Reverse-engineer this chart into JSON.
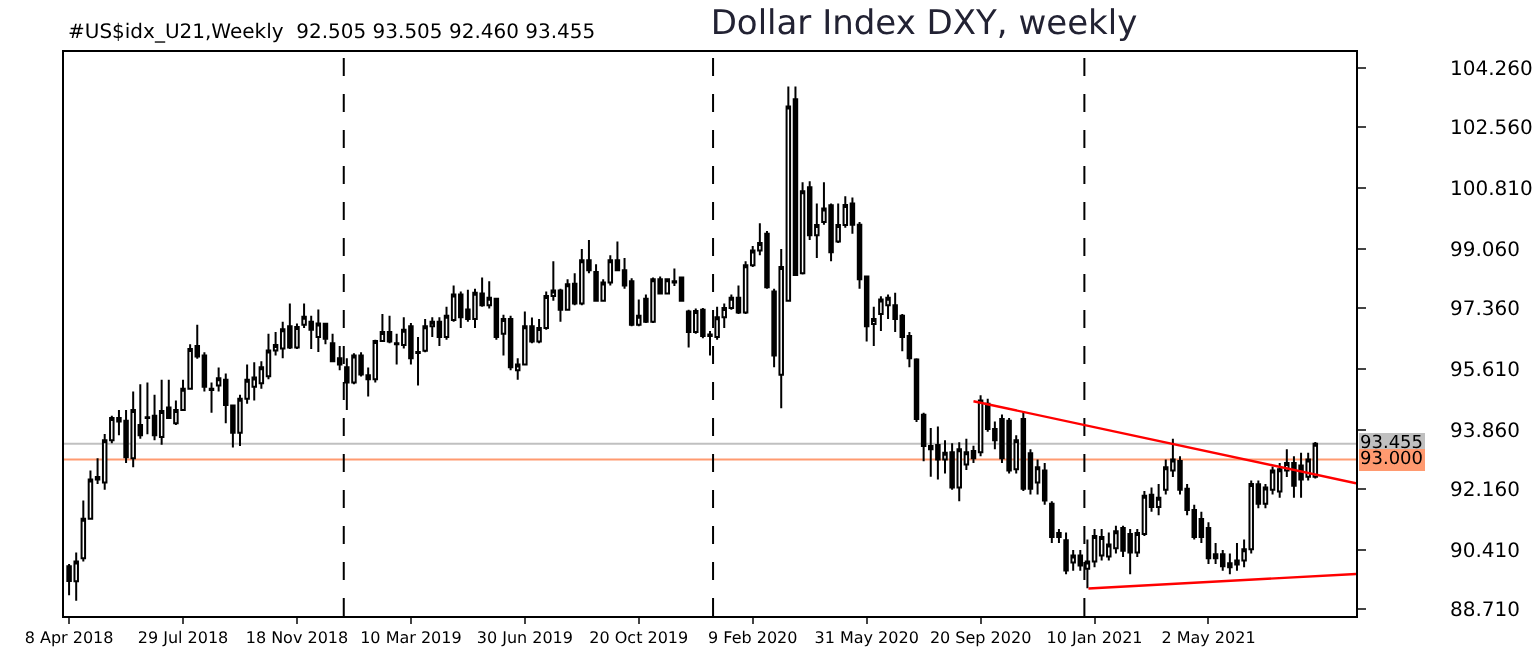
{
  "chart_data": {
    "type": "candlestick",
    "title": "Dollar Index DXY, weekly",
    "annotations": [
      "#US$idx_U21,Weekly  92.505 93.505 92.460 93.455"
    ],
    "x": [
      "2018-04-08",
      "2018-04-15",
      "2018-04-22",
      "2018-04-29",
      "2018-05-06",
      "2018-05-13",
      "2018-05-20",
      "2018-05-27",
      "2018-06-03",
      "2018-06-10",
      "2018-06-17",
      "2018-06-24",
      "2018-07-01",
      "2018-07-08",
      "2018-07-15",
      "2018-07-22",
      "2018-07-29",
      "2018-08-05",
      "2018-08-12",
      "2018-08-19",
      "2018-08-26",
      "2018-09-02",
      "2018-09-09",
      "2018-09-16",
      "2018-09-23",
      "2018-09-30",
      "2018-10-07",
      "2018-10-14",
      "2018-10-21",
      "2018-10-28",
      "2018-11-04",
      "2018-11-11",
      "2018-11-18",
      "2018-11-25",
      "2018-12-02",
      "2018-12-09",
      "2018-12-16",
      "2018-12-23",
      "2018-12-30",
      "2019-01-06",
      "2019-01-13",
      "2019-01-20",
      "2019-01-27",
      "2019-02-03",
      "2019-02-10",
      "2019-02-17",
      "2019-02-24",
      "2019-03-03",
      "2019-03-10",
      "2019-03-17",
      "2019-03-24",
      "2019-03-31",
      "2019-04-07",
      "2019-04-14",
      "2019-04-21",
      "2019-04-28",
      "2019-05-05",
      "2019-05-12",
      "2019-05-19",
      "2019-05-26",
      "2019-06-02",
      "2019-06-09",
      "2019-06-16",
      "2019-06-23",
      "2019-06-30",
      "2019-07-07",
      "2019-07-14",
      "2019-07-21",
      "2019-07-28",
      "2019-08-04",
      "2019-08-11",
      "2019-08-18",
      "2019-08-25",
      "2019-09-01",
      "2019-09-08",
      "2019-09-15",
      "2019-09-22",
      "2019-09-29",
      "2019-10-06",
      "2019-10-13",
      "2019-10-20",
      "2019-10-27",
      "2019-11-03",
      "2019-11-10",
      "2019-11-17",
      "2019-11-24",
      "2019-12-01",
      "2019-12-08",
      "2019-12-15",
      "2019-12-22",
      "2019-12-29",
      "2020-01-05",
      "2020-01-12",
      "2020-01-19",
      "2020-01-26",
      "2020-02-02",
      "2020-02-09",
      "2020-02-16",
      "2020-02-23",
      "2020-03-01",
      "2020-03-08",
      "2020-03-15",
      "2020-03-22",
      "2020-03-29",
      "2020-04-05",
      "2020-04-12",
      "2020-04-19",
      "2020-04-26",
      "2020-05-03",
      "2020-05-10",
      "2020-05-17",
      "2020-05-24",
      "2020-05-31",
      "2020-06-07",
      "2020-06-14",
      "2020-06-21",
      "2020-06-28",
      "2020-07-05",
      "2020-07-12",
      "2020-07-19",
      "2020-07-26",
      "2020-08-02",
      "2020-08-09",
      "2020-08-16",
      "2020-08-23",
      "2020-08-30",
      "2020-09-06",
      "2020-09-13",
      "2020-09-20",
      "2020-09-27",
      "2020-10-04",
      "2020-10-11",
      "2020-10-18",
      "2020-10-25",
      "2020-11-01",
      "2020-11-08",
      "2020-11-15",
      "2020-11-22",
      "2020-11-29",
      "2020-12-06",
      "2020-12-13",
      "2020-12-20",
      "2020-12-27",
      "2021-01-03",
      "2021-01-10",
      "2021-01-17",
      "2021-01-24",
      "2021-01-31",
      "2021-02-07",
      "2021-02-14",
      "2021-02-21",
      "2021-02-28",
      "2021-03-07",
      "2021-03-14",
      "2021-03-21",
      "2021-03-28",
      "2021-04-04",
      "2021-04-11",
      "2021-04-18",
      "2021-04-25",
      "2021-05-02",
      "2021-05-09",
      "2021-05-16",
      "2021-05-23",
      "2021-05-30",
      "2021-06-06",
      "2021-06-13",
      "2021-06-20",
      "2021-06-27",
      "2021-07-04",
      "2021-07-11",
      "2021-07-18",
      "2021-07-25",
      "2021-08-01",
      "2021-08-08",
      "2021-08-15"
    ],
    "ohlc": [
      [
        89.93,
        90.0,
        89.1,
        89.51
      ],
      [
        89.5,
        90.33,
        88.94,
        90.07
      ],
      [
        90.16,
        91.82,
        90.07,
        91.3
      ],
      [
        91.3,
        92.69,
        91.29,
        92.43
      ],
      [
        92.43,
        93.04,
        92.3,
        92.5
      ],
      [
        92.34,
        93.74,
        92.13,
        93.56
      ],
      [
        93.56,
        94.26,
        93.47,
        94.2
      ],
      [
        94.1,
        94.43,
        93.7,
        94.2
      ],
      [
        94.12,
        94.43,
        92.9,
        93.07
      ],
      [
        93.04,
        94.96,
        92.78,
        94.43
      ],
      [
        94.0,
        95.17,
        93.6,
        93.7
      ],
      [
        94.2,
        95.22,
        93.73,
        94.22
      ],
      [
        94.26,
        94.87,
        93.56,
        93.7
      ],
      [
        93.65,
        95.3,
        93.43,
        94.4
      ],
      [
        94.5,
        95.3,
        94.17,
        94.2
      ],
      [
        94.05,
        94.7,
        94.0,
        94.43
      ],
      [
        94.43,
        95.3,
        94.43,
        95.04
      ],
      [
        95.04,
        96.32,
        95.04,
        96.18
      ],
      [
        96.27,
        96.88,
        95.9,
        95.97
      ],
      [
        96.0,
        96.09,
        94.96,
        95.1
      ],
      [
        95.0,
        95.22,
        94.35,
        95.04
      ],
      [
        95.13,
        95.65,
        94.96,
        95.34
      ],
      [
        95.3,
        95.48,
        94.05,
        94.57
      ],
      [
        94.56,
        94.57,
        93.35,
        93.77
      ],
      [
        93.77,
        94.87,
        93.39,
        94.75
      ],
      [
        94.75,
        95.74,
        94.61,
        95.3
      ],
      [
        95.1,
        95.8,
        94.7,
        95.36
      ],
      [
        95.2,
        95.83,
        95.04,
        95.66
      ],
      [
        95.4,
        96.62,
        95.31,
        96.14
      ],
      [
        96.14,
        96.67,
        96.0,
        96.3
      ],
      [
        96.2,
        96.97,
        95.92,
        96.75
      ],
      [
        96.84,
        97.49,
        96.18,
        96.23
      ],
      [
        96.23,
        96.92,
        96.18,
        96.82
      ],
      [
        96.88,
        97.49,
        96.79,
        97.11
      ],
      [
        96.97,
        97.14,
        96.18,
        96.74
      ],
      [
        96.53,
        97.32,
        96.1,
        96.92
      ],
      [
        96.91,
        96.93,
        96.32,
        96.48
      ],
      [
        96.35,
        96.62,
        95.8,
        95.83
      ],
      [
        95.92,
        96.27,
        95.57,
        95.74
      ],
      [
        95.66,
        95.92,
        94.43,
        95.22
      ],
      [
        95.22,
        96.06,
        95.17,
        96.0
      ],
      [
        96.0,
        96.09,
        95.39,
        95.45
      ],
      [
        95.43,
        95.65,
        94.82,
        95.31
      ],
      [
        95.31,
        96.45,
        95.22,
        96.41
      ],
      [
        96.41,
        97.19,
        96.4,
        96.67
      ],
      [
        96.67,
        97.14,
        96.35,
        96.4
      ],
      [
        96.35,
        96.62,
        95.74,
        96.32
      ],
      [
        96.3,
        97.1,
        96.2,
        96.74
      ],
      [
        96.84,
        96.93,
        95.74,
        95.92
      ],
      [
        96.07,
        96.53,
        95.13,
        96.1
      ],
      [
        96.13,
        97.05,
        96.09,
        96.84
      ],
      [
        96.84,
        97.1,
        96.53,
        96.97
      ],
      [
        96.97,
        97.1,
        96.27,
        96.53
      ],
      [
        96.53,
        97.4,
        96.45,
        97.14
      ],
      [
        97.02,
        98.01,
        96.97,
        97.75
      ],
      [
        97.75,
        97.84,
        96.79,
        97.1
      ],
      [
        97.32,
        97.89,
        96.97,
        97.05
      ],
      [
        97.05,
        97.92,
        96.79,
        97.8
      ],
      [
        97.78,
        98.24,
        97.4,
        97.44
      ],
      [
        97.44,
        98.13,
        97.35,
        97.66
      ],
      [
        97.63,
        97.66,
        96.45,
        96.53
      ],
      [
        96.62,
        97.17,
        96.0,
        97.05
      ],
      [
        97.05,
        97.14,
        95.57,
        95.66
      ],
      [
        95.57,
        95.92,
        95.3,
        95.74
      ],
      [
        95.74,
        97.26,
        95.74,
        96.84
      ],
      [
        96.84,
        97.09,
        96.35,
        96.4
      ],
      [
        96.4,
        97.05,
        96.35,
        96.79
      ],
      [
        96.79,
        97.84,
        96.74,
        97.71
      ],
      [
        97.71,
        98.71,
        97.57,
        97.87
      ],
      [
        97.87,
        97.92,
        96.97,
        97.31
      ],
      [
        97.31,
        98.19,
        97.31,
        98.05
      ],
      [
        98.06,
        98.36,
        97.44,
        97.49
      ],
      [
        97.49,
        99.06,
        97.44,
        98.74
      ],
      [
        98.74,
        99.32,
        98.36,
        98.45
      ],
      [
        98.4,
        98.62,
        97.54,
        97.57
      ],
      [
        97.57,
        98.19,
        97.54,
        98.1
      ],
      [
        98.1,
        98.88,
        98.01,
        98.74
      ],
      [
        98.74,
        99.28,
        98.45,
        98.45
      ],
      [
        98.45,
        98.8,
        97.92,
        98.01
      ],
      [
        98.13,
        98.22,
        96.84,
        96.88
      ],
      [
        96.88,
        97.61,
        96.84,
        97.14
      ],
      [
        97.63,
        97.75,
        96.93,
        96.97
      ],
      [
        96.97,
        98.24,
        96.93,
        98.19
      ],
      [
        98.19,
        98.27,
        97.75,
        97.78
      ],
      [
        97.78,
        98.22,
        97.75,
        98.19
      ],
      [
        98.1,
        98.5,
        98.0,
        98.13
      ],
      [
        98.24,
        98.27,
        97.54,
        97.57
      ],
      [
        97.26,
        97.31,
        96.23,
        96.67
      ],
      [
        96.67,
        97.35,
        96.62,
        97.28
      ],
      [
        97.31,
        97.36,
        96.49,
        96.56
      ],
      [
        96.56,
        96.7,
        96.0,
        96.6
      ],
      [
        96.53,
        97.4,
        96.45,
        97.1
      ],
      [
        97.1,
        97.49,
        96.79,
        97.36
      ],
      [
        97.36,
        97.75,
        97.31,
        97.66
      ],
      [
        97.66,
        98.01,
        97.19,
        97.23
      ],
      [
        97.23,
        98.71,
        97.19,
        98.59
      ],
      [
        98.59,
        99.15,
        98.54,
        99.02
      ],
      [
        99.02,
        99.8,
        98.88,
        99.23
      ],
      [
        99.5,
        99.58,
        97.92,
        97.96
      ],
      [
        97.84,
        97.92,
        95.66,
        96.0
      ],
      [
        95.44,
        99.06,
        94.48,
        98.54
      ],
      [
        97.57,
        103.74,
        97.57,
        103.16
      ],
      [
        103.37,
        103.74,
        98.31,
        98.31
      ],
      [
        98.36,
        100.98,
        98.33,
        100.72
      ],
      [
        100.84,
        101.01,
        99.32,
        99.46
      ],
      [
        99.46,
        100.37,
        98.8,
        99.75
      ],
      [
        99.84,
        100.98,
        99.76,
        100.23
      ],
      [
        100.32,
        100.37,
        98.71,
        98.97
      ],
      [
        99.28,
        100.37,
        99.23,
        99.75
      ],
      [
        99.75,
        100.58,
        99.67,
        100.33
      ],
      [
        100.37,
        100.54,
        99.5,
        99.76
      ],
      [
        99.76,
        99.84,
        97.92,
        98.19
      ],
      [
        98.27,
        98.27,
        96.4,
        96.84
      ],
      [
        96.9,
        97.4,
        96.27,
        97.05
      ],
      [
        97.19,
        97.7,
        96.7,
        97.61
      ],
      [
        97.44,
        97.75,
        97.05,
        97.66
      ],
      [
        97.44,
        97.8,
        96.67,
        97.05
      ],
      [
        97.14,
        97.19,
        96.12,
        96.53
      ],
      [
        96.56,
        96.67,
        95.66,
        95.92
      ],
      [
        95.88,
        95.92,
        94.08,
        94.17
      ],
      [
        94.29,
        94.35,
        92.95,
        93.39
      ],
      [
        93.39,
        93.91,
        92.51,
        93.3
      ],
      [
        93.42,
        93.95,
        92.43,
        93.0
      ],
      [
        93.0,
        93.56,
        92.6,
        93.2
      ],
      [
        93.21,
        93.47,
        92.13,
        92.2
      ],
      [
        92.2,
        93.5,
        91.8,
        93.3
      ],
      [
        92.86,
        93.6,
        92.7,
        93.21
      ],
      [
        93.25,
        93.4,
        92.9,
        93.04
      ],
      [
        93.21,
        94.85,
        93.1,
        94.7
      ],
      [
        94.61,
        94.75,
        93.8,
        93.88
      ],
      [
        93.88,
        94.1,
        93.3,
        93.56
      ],
      [
        94.17,
        94.3,
        92.9,
        93.04
      ],
      [
        94.12,
        94.2,
        92.6,
        92.69
      ],
      [
        92.72,
        93.7,
        92.6,
        93.56
      ],
      [
        94.17,
        94.4,
        92.1,
        92.16
      ],
      [
        93.18,
        93.3,
        92.0,
        92.16
      ],
      [
        92.34,
        93.0,
        92.0,
        92.78
      ],
      [
        92.69,
        92.9,
        91.7,
        91.82
      ],
      [
        91.73,
        91.8,
        90.6,
        90.77
      ],
      [
        90.77,
        91.0,
        90.6,
        90.89
      ],
      [
        90.68,
        90.9,
        89.7,
        89.81
      ],
      [
        90.04,
        90.4,
        89.8,
        90.24
      ],
      [
        90.24,
        90.4,
        89.8,
        89.95
      ],
      [
        89.86,
        90.7,
        89.3,
        90.07
      ],
      [
        90.07,
        91.0,
        89.9,
        90.8
      ],
      [
        90.24,
        91.0,
        90.1,
        90.77
      ],
      [
        90.21,
        90.9,
        90.1,
        90.56
      ],
      [
        90.45,
        91.1,
        90.3,
        90.94
      ],
      [
        91.03,
        91.1,
        90.2,
        90.38
      ],
      [
        90.86,
        91.0,
        89.7,
        90.33
      ],
      [
        90.33,
        91.0,
        90.2,
        90.89
      ],
      [
        90.86,
        92.1,
        90.8,
        91.96
      ],
      [
        91.99,
        92.2,
        91.5,
        91.64
      ],
      [
        91.64,
        92.3,
        91.4,
        91.9
      ],
      [
        92.13,
        93.0,
        92.0,
        92.78
      ],
      [
        92.69,
        93.6,
        92.5,
        93.0
      ],
      [
        92.96,
        93.1,
        92.0,
        92.13
      ],
      [
        92.16,
        92.3,
        91.4,
        91.55
      ],
      [
        91.55,
        91.7,
        90.7,
        90.77
      ],
      [
        91.29,
        91.5,
        90.6,
        90.77
      ],
      [
        91.03,
        91.2,
        90.0,
        90.16
      ],
      [
        90.16,
        90.6,
        90.0,
        90.28
      ],
      [
        90.28,
        90.4,
        89.8,
        89.93
      ],
      [
        89.9,
        90.3,
        89.7,
        90.02
      ],
      [
        89.98,
        90.6,
        89.8,
        90.1
      ],
      [
        90.1,
        90.7,
        89.9,
        90.42
      ],
      [
        90.42,
        92.4,
        90.3,
        92.3
      ],
      [
        92.29,
        92.4,
        91.6,
        91.73
      ],
      [
        91.73,
        92.3,
        91.6,
        92.2
      ],
      [
        92.13,
        92.8,
        92.0,
        92.69
      ],
      [
        92.08,
        92.9,
        91.9,
        92.72
      ],
      [
        92.69,
        93.3,
        92.5,
        92.9
      ],
      [
        92.9,
        93.1,
        91.9,
        92.25
      ],
      [
        92.83,
        93.2,
        91.9,
        92.43
      ],
      [
        92.51,
        93.2,
        92.4,
        93.0
      ],
      [
        92.505,
        93.505,
        92.46,
        93.455
      ]
    ],
    "series": [
      {
        "type": "line",
        "color": "#ff0000",
        "x": [
          "2020-09-13",
          "2021-09-24"
        ],
        "values": [
          94.68,
          92.32
        ]
      },
      {
        "type": "line",
        "color": "#ff0000",
        "x": [
          "2021-01-04",
          "2021-09-24"
        ],
        "values": [
          89.29,
          89.71
        ]
      }
    ],
    "xlim": [
      "2018-04-03",
      "2021-09-24"
    ],
    "xticks": [
      {
        "value": "2018-04-08",
        "label": "8 Apr 2018"
      },
      {
        "value": "2018-07-29",
        "label": "29 Jul 2018"
      },
      {
        "value": "2018-11-18",
        "label": "18 Nov 2018"
      },
      {
        "value": "2019-03-10",
        "label": "10 Mar 2019"
      },
      {
        "value": "2019-06-30",
        "label": "30 Jun 2019"
      },
      {
        "value": "2019-10-20",
        "label": "20 Oct 2019"
      },
      {
        "value": "2020-02-09",
        "label": "9 Feb 2020"
      },
      {
        "value": "2020-05-31",
        "label": "31 May 2020"
      },
      {
        "value": "2020-09-20",
        "label": "20 Sep 2020"
      },
      {
        "value": "2021-01-10",
        "label": "10 Jan 2021"
      },
      {
        "value": "2021-05-02",
        "label": "2 May 2021"
      }
    ],
    "ylim": [
      88.5,
      104.73
    ],
    "yticks": [
      {
        "value": 88.71,
        "label": "88.710"
      },
      {
        "value": 90.41,
        "label": "90.410"
      },
      {
        "value": 92.16,
        "label": "92.160"
      },
      {
        "value": 93.86,
        "label": "93.860"
      },
      {
        "value": 95.61,
        "label": "95.610"
      },
      {
        "value": 97.36,
        "label": "97.360"
      },
      {
        "value": 99.06,
        "label": "99.060"
      },
      {
        "value": 100.81,
        "label": "100.810"
      },
      {
        "value": 102.56,
        "label": "102.560"
      },
      {
        "value": 104.26,
        "label": "104.260"
      }
    ],
    "ref_lines": [
      {
        "axis": "y",
        "value": 93.455,
        "label": "93.455",
        "color": "#c0c0c0",
        "line_style": "solid"
      },
      {
        "axis": "y",
        "value": 93.0,
        "label": "93.000",
        "color": "#ff9a70",
        "line_style": "solid"
      },
      {
        "axis": "x",
        "value": "2019-01-03",
        "color": "#000000",
        "line_style": "dashed"
      },
      {
        "axis": "x",
        "value": "2020-01-01",
        "color": "#000000",
        "line_style": "dashed"
      },
      {
        "axis": "x",
        "value": "2020-12-31",
        "color": "#000000",
        "line_style": "dashed"
      }
    ]
  }
}
